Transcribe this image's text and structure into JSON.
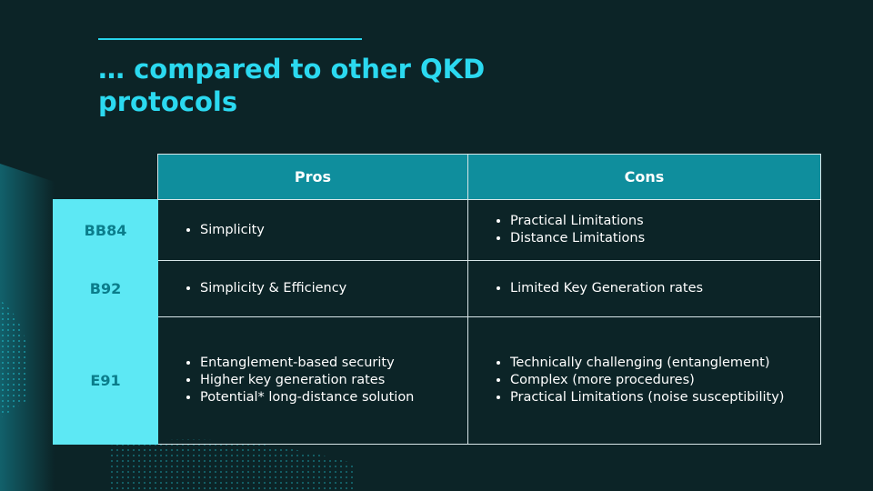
{
  "title": "… compared to other QKD protocols",
  "table": {
    "header": [
      "Pros",
      "Cons"
    ],
    "rows": [
      {
        "label": "BB84",
        "pros": [
          "Simplicity"
        ],
        "cons": [
          "Practical Limitations",
          "Distance Limitations"
        ]
      },
      {
        "label": "B92",
        "pros": [
          "Simplicity & Efficiency"
        ],
        "cons": [
          "Limited Key Generation rates"
        ]
      },
      {
        "label": "E91",
        "pros": [
          "Entanglement-based security",
          "Higher key generation rates",
          "Potential* long-distance solution"
        ],
        "cons": [
          "Technically challenging (entanglement)",
          "Complex (more procedures)",
          "Practical Limitations (noise susceptibility)"
        ]
      }
    ]
  }
}
